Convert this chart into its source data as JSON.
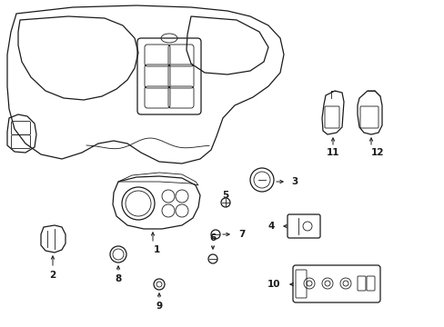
{
  "background_color": "#ffffff",
  "line_color": "#1a1a1a",
  "figsize": [
    4.89,
    3.6
  ],
  "dpi": 100,
  "lw_main": 0.9,
  "lw_thin": 0.6,
  "lw_arrow": 0.7,
  "font_size": 7.5
}
